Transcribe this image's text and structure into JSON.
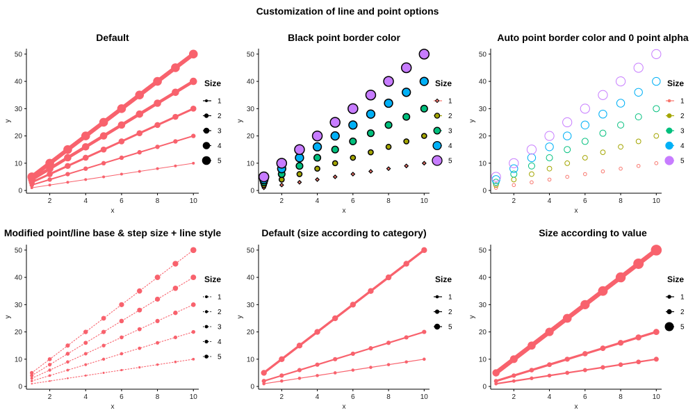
{
  "figure": {
    "title": "Customization of line and point options"
  },
  "colors": {
    "line": "#f8626d",
    "palette": [
      "#f8766d",
      "#b79f00",
      "#00ba38",
      "#00a3e8",
      "#c77cff"
    ],
    "palette_fill": [
      "#f8766d",
      "#a3a500",
      "#00bf7d",
      "#00b0f6",
      "#c77cff"
    ]
  },
  "chart_data": [
    {
      "type": "line",
      "title": "Default",
      "xlabel": "x",
      "ylabel": "y",
      "xlim": [
        0.7,
        10.3
      ],
      "ylim": [
        -1,
        52
      ],
      "xticks": [
        2,
        4,
        6,
        8,
        10
      ],
      "yticks": [
        0,
        10,
        20,
        30,
        40,
        50
      ],
      "grid": false,
      "x": [
        1,
        2,
        3,
        4,
        5,
        6,
        7,
        8,
        9,
        10
      ],
      "series": [
        {
          "size": 1,
          "values": [
            1,
            2,
            3,
            4,
            5,
            6,
            7,
            8,
            9,
            10
          ]
        },
        {
          "size": 2,
          "values": [
            2,
            4,
            6,
            8,
            10,
            12,
            14,
            16,
            18,
            20
          ]
        },
        {
          "size": 3,
          "values": [
            3,
            6,
            9,
            12,
            15,
            18,
            21,
            24,
            27,
            30
          ]
        },
        {
          "size": 4,
          "values": [
            4,
            8,
            12,
            16,
            20,
            24,
            28,
            32,
            36,
            40
          ]
        },
        {
          "size": 5,
          "values": [
            5,
            10,
            15,
            20,
            25,
            30,
            35,
            40,
            45,
            50
          ]
        }
      ],
      "legend": {
        "title": "Size",
        "entries": [
          "1",
          "2",
          "3",
          "4",
          "5"
        ],
        "position": "right"
      },
      "style": "default"
    },
    {
      "type": "scatter",
      "title": "Black point border color",
      "xlabel": "x",
      "ylabel": "y",
      "xlim": [
        0.7,
        10.3
      ],
      "ylim": [
        -1,
        52
      ],
      "xticks": [
        2,
        4,
        6,
        8,
        10
      ],
      "yticks": [
        0,
        10,
        20,
        30,
        40,
        50
      ],
      "grid": false,
      "x": [
        1,
        2,
        3,
        4,
        5,
        6,
        7,
        8,
        9,
        10
      ],
      "series": [
        {
          "size": 1,
          "values": [
            1,
            2,
            3,
            4,
            5,
            6,
            7,
            8,
            9,
            10
          ]
        },
        {
          "size": 2,
          "values": [
            2,
            4,
            6,
            8,
            10,
            12,
            14,
            16,
            18,
            20
          ]
        },
        {
          "size": 3,
          "values": [
            3,
            6,
            9,
            12,
            15,
            18,
            21,
            24,
            27,
            30
          ]
        },
        {
          "size": 4,
          "values": [
            4,
            8,
            12,
            16,
            20,
            24,
            28,
            32,
            36,
            40
          ]
        },
        {
          "size": 5,
          "values": [
            5,
            10,
            15,
            20,
            25,
            30,
            35,
            40,
            45,
            50
          ]
        }
      ],
      "legend": {
        "title": "Size",
        "entries": [
          "1",
          "2",
          "3",
          "4",
          "5"
        ],
        "position": "right"
      },
      "style": "black-border"
    },
    {
      "type": "scatter",
      "title": "Auto point border color and 0 point alpha",
      "xlabel": "x",
      "ylabel": "y",
      "xlim": [
        0.7,
        10.3
      ],
      "ylim": [
        -1,
        52
      ],
      "xticks": [
        2,
        4,
        6,
        8,
        10
      ],
      "yticks": [
        0,
        10,
        20,
        30,
        40,
        50
      ],
      "grid": false,
      "x": [
        1,
        2,
        3,
        4,
        5,
        6,
        7,
        8,
        9,
        10
      ],
      "series": [
        {
          "size": 1,
          "values": [
            1,
            2,
            3,
            4,
            5,
            6,
            7,
            8,
            9,
            10
          ]
        },
        {
          "size": 2,
          "values": [
            2,
            4,
            6,
            8,
            10,
            12,
            14,
            16,
            18,
            20
          ]
        },
        {
          "size": 3,
          "values": [
            3,
            6,
            9,
            12,
            15,
            18,
            21,
            24,
            27,
            30
          ]
        },
        {
          "size": 4,
          "values": [
            4,
            8,
            12,
            16,
            20,
            24,
            28,
            32,
            36,
            40
          ]
        },
        {
          "size": 5,
          "values": [
            5,
            10,
            15,
            20,
            25,
            30,
            35,
            40,
            45,
            50
          ]
        }
      ],
      "legend": {
        "title": "Size",
        "entries": [
          "1",
          "2",
          "3",
          "4",
          "5"
        ],
        "position": "right"
      },
      "style": "hollow"
    },
    {
      "type": "line",
      "title": "Modified point/line base & step size + line style",
      "xlabel": "x",
      "ylabel": "y",
      "xlim": [
        0.7,
        10.3
      ],
      "ylim": [
        -1,
        52
      ],
      "xticks": [
        2,
        4,
        6,
        8,
        10
      ],
      "yticks": [
        0,
        10,
        20,
        30,
        40,
        50
      ],
      "grid": false,
      "x": [
        1,
        2,
        3,
        4,
        5,
        6,
        7,
        8,
        9,
        10
      ],
      "series": [
        {
          "size": 1,
          "values": [
            1,
            2,
            3,
            4,
            5,
            6,
            7,
            8,
            9,
            10
          ]
        },
        {
          "size": 2,
          "values": [
            2,
            4,
            6,
            8,
            10,
            12,
            14,
            16,
            18,
            20
          ]
        },
        {
          "size": 3,
          "values": [
            3,
            6,
            9,
            12,
            15,
            18,
            21,
            24,
            27,
            30
          ]
        },
        {
          "size": 4,
          "values": [
            4,
            8,
            12,
            16,
            20,
            24,
            28,
            32,
            36,
            40
          ]
        },
        {
          "size": 5,
          "values": [
            5,
            10,
            15,
            20,
            25,
            30,
            35,
            40,
            45,
            50
          ]
        }
      ],
      "legend": {
        "title": "Size",
        "entries": [
          "1",
          "2",
          "3",
          "4",
          "5"
        ],
        "position": "right"
      },
      "style": "dotted"
    },
    {
      "type": "line",
      "title": "Default (size according to category)",
      "xlabel": "x",
      "ylabel": "y",
      "xlim": [
        0.7,
        10.3
      ],
      "ylim": [
        -1,
        52
      ],
      "xticks": [
        2,
        4,
        6,
        8,
        10
      ],
      "yticks": [
        0,
        10,
        20,
        30,
        40,
        50
      ],
      "grid": false,
      "x": [
        1,
        2,
        3,
        4,
        5,
        6,
        7,
        8,
        9,
        10
      ],
      "series": [
        {
          "size": 1,
          "values": [
            1,
            2,
            3,
            4,
            5,
            6,
            7,
            8,
            9,
            10
          ]
        },
        {
          "size": 2,
          "values": [
            2,
            4,
            6,
            8,
            10,
            12,
            14,
            16,
            18,
            20
          ]
        },
        {
          "size": 5,
          "values": [
            5,
            10,
            15,
            20,
            25,
            30,
            35,
            40,
            45,
            50
          ]
        }
      ],
      "legend": {
        "title": "Size",
        "entries": [
          "1",
          "2",
          "5"
        ],
        "position": "right"
      },
      "style": "category"
    },
    {
      "type": "line",
      "title": "Size according to value",
      "xlabel": "x",
      "ylabel": "y",
      "xlim": [
        0.7,
        10.3
      ],
      "ylim": [
        -1,
        52
      ],
      "xticks": [
        2,
        4,
        6,
        8,
        10
      ],
      "yticks": [
        0,
        10,
        20,
        30,
        40,
        50
      ],
      "grid": false,
      "x": [
        1,
        2,
        3,
        4,
        5,
        6,
        7,
        8,
        9,
        10
      ],
      "series": [
        {
          "size": 1,
          "values": [
            1,
            2,
            3,
            4,
            5,
            6,
            7,
            8,
            9,
            10
          ]
        },
        {
          "size": 2,
          "values": [
            2,
            4,
            6,
            8,
            10,
            12,
            14,
            16,
            18,
            20
          ]
        },
        {
          "size": 5,
          "values": [
            5,
            10,
            15,
            20,
            25,
            30,
            35,
            40,
            45,
            50
          ]
        }
      ],
      "legend": {
        "title": "Size",
        "entries": [
          "1",
          "2",
          "5"
        ],
        "position": "right"
      },
      "style": "value"
    }
  ]
}
